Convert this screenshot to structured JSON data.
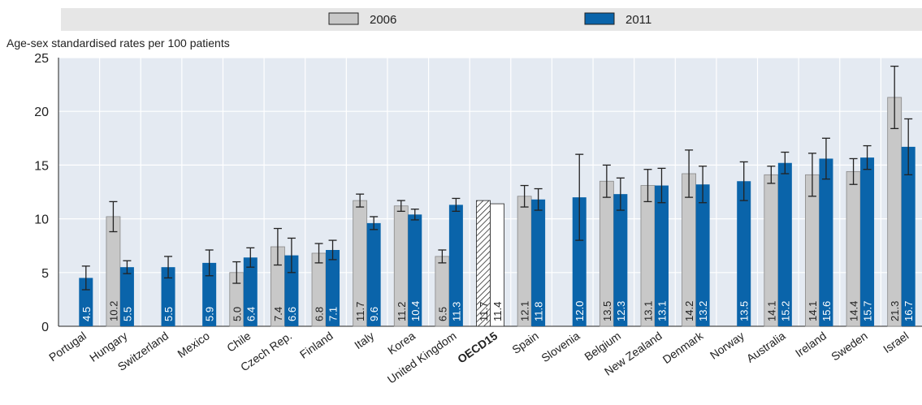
{
  "chart_data": {
    "type": "bar",
    "y_label": "Age-sex standardised rates per 100 patients",
    "categories": [
      "Portugal",
      "Hungary",
      "Switzerland",
      "Mexico",
      "Chile",
      "Czech Rep.",
      "Finland",
      "Italy",
      "Korea",
      "United Kingdom",
      "OECD15",
      "Spain",
      "Slovenia",
      "Belgium",
      "New Zealand",
      "Denmark",
      "Norway",
      "Australia",
      "Ireland",
      "Sweden",
      "Israel"
    ],
    "highlight": "OECD15",
    "series": [
      {
        "name": "2006",
        "color": "#c8c8c8",
        "values": [
          null,
          10.2,
          null,
          null,
          5.0,
          7.4,
          6.8,
          11.7,
          11.2,
          6.5,
          11.7,
          12.1,
          null,
          13.5,
          13.1,
          14.2,
          null,
          14.1,
          14.1,
          14.4,
          21.3
        ],
        "value_labels": [
          null,
          "10.2",
          null,
          null,
          "5.0",
          "7.4",
          "6.8",
          "11.7",
          "11.2",
          "6.5",
          "11.7",
          "12.1",
          null,
          "13.5",
          "13.1",
          "14.2",
          null,
          "14.1",
          "14.1",
          "14.4",
          "21.3"
        ],
        "errors": [
          null,
          1.4,
          null,
          null,
          1.0,
          1.7,
          0.9,
          0.6,
          0.5,
          0.6,
          null,
          1.0,
          null,
          1.5,
          1.5,
          2.2,
          null,
          0.8,
          2.0,
          1.2,
          2.9
        ]
      },
      {
        "name": "2011",
        "color": "#0a64aa",
        "values": [
          4.5,
          5.5,
          5.5,
          5.9,
          6.4,
          6.6,
          7.1,
          9.6,
          10.4,
          11.3,
          11.4,
          11.8,
          12.0,
          12.3,
          13.1,
          13.2,
          13.5,
          15.2,
          15.6,
          15.7,
          16.7
        ],
        "value_labels": [
          "4.5",
          "5.5",
          "5.5",
          "5.9",
          "6.4",
          "6.6",
          "7.1",
          "9.6",
          "10.4",
          "11.3",
          "11.4",
          "11.8",
          "12.0",
          "12.3",
          "13.1",
          "13.2",
          "13.5",
          "15.2",
          "15.6",
          "15.7",
          "16.7"
        ],
        "errors": [
          1.1,
          0.6,
          1.0,
          1.2,
          0.9,
          1.6,
          0.9,
          0.6,
          0.5,
          0.6,
          null,
          1.0,
          4.0,
          1.5,
          1.6,
          1.7,
          1.8,
          1.0,
          1.9,
          1.1,
          2.6
        ]
      }
    ],
    "ylim": [
      0,
      25
    ],
    "yticks": [
      0,
      5,
      10,
      15,
      20,
      25
    ],
    "grid": true
  }
}
